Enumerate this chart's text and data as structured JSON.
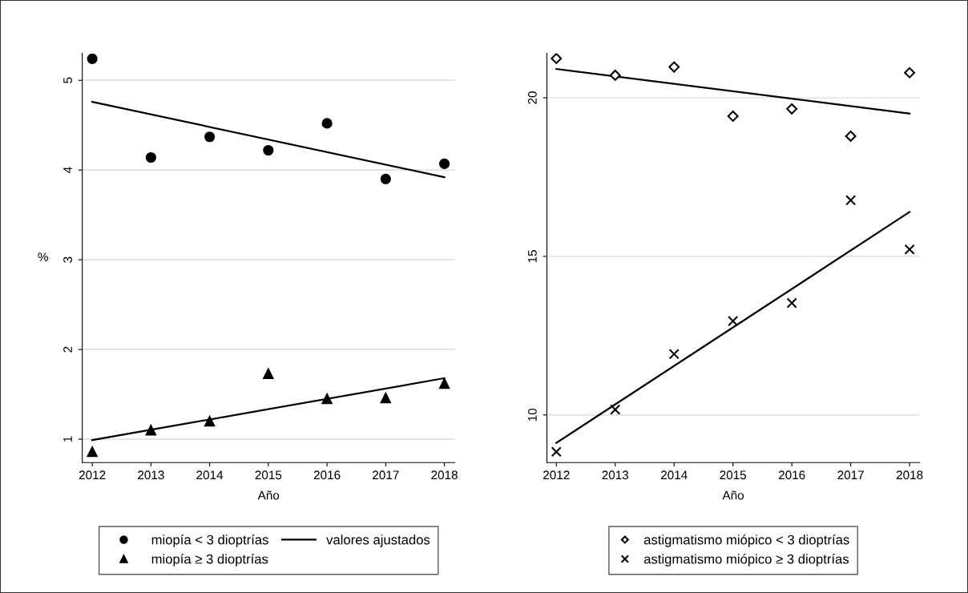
{
  "chart_data": [
    {
      "type": "scatter",
      "xlabel": "Año",
      "ylabel": "%",
      "xlim": [
        2011.83,
        2018.18
      ],
      "xticks": [
        2012,
        2013,
        2014,
        2015,
        2016,
        2017,
        2018
      ],
      "ylim": [
        0.74,
        5.3
      ],
      "yticks": [
        1,
        2,
        3,
        4,
        5
      ],
      "grid": "y",
      "legend": "bottom",
      "series": [
        {
          "name": "miopía < 3 dioptrías",
          "color": "#000000",
          "marker": "circle",
          "x": [
            2012,
            2013,
            2014,
            2015,
            2016,
            2017,
            2018
          ],
          "values": [
            5.24,
            4.14,
            4.37,
            4.22,
            4.52,
            3.9,
            4.07
          ]
        },
        {
          "name": "miopía ≥ 3 dioptrías",
          "color": "#000000",
          "marker": "triangle",
          "x": [
            2012,
            2013,
            2014,
            2015,
            2016,
            2017,
            2018
          ],
          "values": [
            0.86,
            1.1,
            1.2,
            1.73,
            1.45,
            1.46,
            1.62
          ]
        },
        {
          "name": "valores ajustados",
          "type": "line",
          "color": "#000000",
          "line_style": "solid",
          "x": [
            2012,
            2018
          ],
          "values": [
            4.76,
            3.92
          ]
        },
        {
          "type": "line",
          "color": "#000000",
          "line_style": "solid",
          "x": [
            2012,
            2018
          ],
          "values": [
            0.99,
            1.68
          ]
        }
      ]
    },
    {
      "type": "scatter",
      "xlabel": "Año",
      "xlim": [
        2011.84,
        2018.17
      ],
      "xticks": [
        2012,
        2013,
        2014,
        2015,
        2016,
        2017,
        2018
      ],
      "ylim": [
        8.5,
        21.4
      ],
      "yticks": [
        10,
        15,
        20
      ],
      "grid": "y",
      "legend": "bottom",
      "series": [
        {
          "name": "astigmatismo miópico < 3 dioptrías",
          "color": "#000000",
          "marker": "diamond",
          "x": [
            2012,
            2013,
            2014,
            2015,
            2016,
            2017,
            2018
          ],
          "values": [
            21.24,
            20.71,
            20.97,
            19.42,
            19.65,
            18.79,
            20.79
          ]
        },
        {
          "name": "astigmatismo miópico ≥ 3 dioptrías",
          "color": "#000000",
          "marker": "cross",
          "x": [
            2012,
            2013,
            2014,
            2015,
            2016,
            2017,
            2018
          ],
          "values": [
            8.84,
            10.17,
            11.92,
            12.96,
            13.53,
            16.77,
            15.22
          ]
        },
        {
          "type": "line",
          "color": "#000000",
          "line_style": "solid",
          "x": [
            2012,
            2018
          ],
          "values": [
            20.91,
            19.5
          ]
        },
        {
          "type": "line",
          "color": "#000000",
          "line_style": "solid",
          "x": [
            2012,
            2018
          ],
          "values": [
            9.12,
            16.4
          ]
        }
      ]
    }
  ]
}
